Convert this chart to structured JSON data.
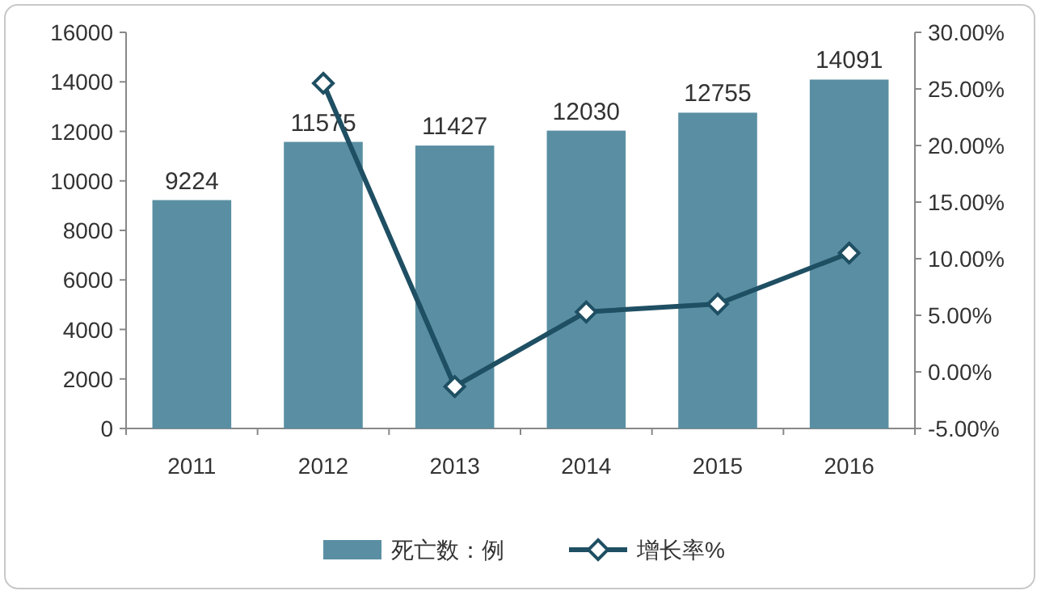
{
  "chart_data": {
    "type": "bar",
    "categories": [
      "2011",
      "2012",
      "2013",
      "2014",
      "2015",
      "2016"
    ],
    "series": [
      {
        "name": "死亡数：例",
        "color": "#5a8fa3",
        "values": [
          9224,
          11575,
          11427,
          12030,
          12755,
          14091
        ],
        "value_labels": [
          "9224",
          "11575",
          "11427",
          "12030",
          "12755",
          "14091"
        ]
      },
      {
        "name": "增长率%",
        "type": "line",
        "axis": "y2",
        "color": "#1f4f63",
        "marker": "diamond",
        "values": [
          null,
          25.5,
          -1.3,
          5.3,
          6.0,
          10.5
        ]
      }
    ],
    "ylim": [
      0,
      16000
    ],
    "yticks": [
      0,
      2000,
      4000,
      6000,
      8000,
      10000,
      12000,
      14000,
      16000
    ],
    "y2lim": [
      -5,
      30
    ],
    "y2ticks": [
      {
        "value": -5,
        "label": "-5.00%"
      },
      {
        "value": 0,
        "label": "0.00%"
      },
      {
        "value": 5,
        "label": "5.00%"
      },
      {
        "value": 10,
        "label": "10.00%"
      },
      {
        "value": 15,
        "label": "15.00%"
      },
      {
        "value": 20,
        "label": "20.00%"
      },
      {
        "value": 25,
        "label": "25.00%"
      },
      {
        "value": 30,
        "label": "30.00%"
      }
    ],
    "legend": "bottom"
  }
}
